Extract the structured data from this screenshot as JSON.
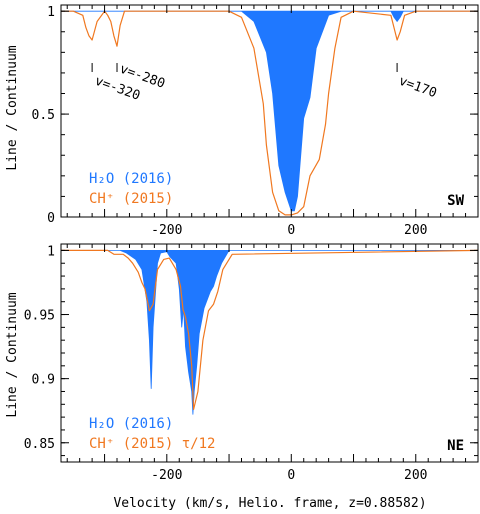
{
  "colors": {
    "h2o": "#1f78ff",
    "chp": "#f07820"
  },
  "chart_data": [
    {
      "type": "area",
      "panel_label": "SW",
      "ylabel": "Line / Continuum",
      "xlim": [
        -370,
        300
      ],
      "ylim": [
        0,
        1.03
      ],
      "yticks": [
        "0",
        "0.5",
        "1"
      ],
      "ytick_values": [
        0,
        0.5,
        1
      ],
      "xticks": [
        "-200",
        "0",
        "200"
      ],
      "xtick_values": [
        -200,
        0,
        200
      ],
      "legend": [
        {
          "label": "H₂O (2016)",
          "color": "h2o"
        },
        {
          "label": "CH⁺ (2015)",
          "color": "chp"
        }
      ],
      "annotations": [
        {
          "text": "v=-320",
          "v": -320
        },
        {
          "text": "v=-280",
          "v": -280
        },
        {
          "text": "v=170",
          "v": 170
        }
      ],
      "series": [
        {
          "name": "H₂O (2016)",
          "style": "filled",
          "x": [
            -370,
            -350,
            -340,
            -80,
            -60,
            -40,
            -30,
            -20,
            -10,
            0,
            5,
            10,
            20,
            30,
            40,
            60,
            80,
            160,
            165,
            170,
            175,
            180,
            300
          ],
          "y": [
            1.0,
            1.0,
            1.0,
            1.0,
            0.95,
            0.8,
            0.6,
            0.25,
            0.12,
            0.03,
            0.03,
            0.1,
            0.48,
            0.58,
            0.82,
            0.98,
            1.0,
            1.0,
            0.97,
            0.95,
            0.97,
            1.0,
            1.0
          ]
        },
        {
          "name": "CH⁺ (2015)",
          "style": "line",
          "x": [
            -370,
            -350,
            -335,
            -330,
            -325,
            -320,
            -312,
            -300,
            -295,
            -290,
            -285,
            -280,
            -275,
            -268,
            -250,
            -150,
            -100,
            -80,
            -60,
            -45,
            -40,
            -30,
            -20,
            -10,
            0,
            10,
            20,
            30,
            45,
            55,
            60,
            70,
            80,
            100,
            160,
            165,
            170,
            175,
            182,
            200,
            300
          ],
          "y": [
            1.0,
            1.0,
            0.98,
            0.92,
            0.88,
            0.86,
            0.95,
            1.0,
            0.98,
            0.95,
            0.88,
            0.83,
            0.93,
            1.0,
            1.0,
            1.0,
            1.0,
            0.97,
            0.82,
            0.55,
            0.35,
            0.12,
            0.03,
            0.01,
            0.01,
            0.02,
            0.05,
            0.2,
            0.28,
            0.45,
            0.6,
            0.82,
            0.97,
            1.0,
            0.98,
            0.92,
            0.86,
            0.9,
            0.98,
            1.0,
            1.0
          ]
        }
      ]
    },
    {
      "type": "area",
      "panel_label": "NE",
      "ylabel": "Line / Continuum",
      "xlabel": "Velocity (km/s, Helio. frame, z=0.88582)",
      "xlim": [
        -370,
        300
      ],
      "ylim": [
        0.835,
        1.005
      ],
      "yticks": [
        "0.85",
        "0.9",
        "0.95",
        "1"
      ],
      "ytick_values": [
        0.85,
        0.9,
        0.95,
        1
      ],
      "xticks": [
        "-200",
        "0",
        "200"
      ],
      "xtick_values": [
        -200,
        0,
        200
      ],
      "legend": [
        {
          "label": "H₂O (2016)",
          "color": "h2o"
        },
        {
          "label": "CH⁺ (2015) τ/12",
          "color": "chp"
        }
      ],
      "series": [
        {
          "name": "H₂O (2016)",
          "style": "filled",
          "x": [
            -370,
            -275,
            -265,
            -250,
            -240,
            -232,
            -228,
            -225,
            -222,
            -215,
            -210,
            -200,
            -195,
            -185,
            -180,
            -176,
            -173,
            -170,
            -165,
            -160,
            -158,
            -156,
            -152,
            -148,
            -140,
            -130,
            -125,
            -120,
            -112,
            -100,
            300
          ],
          "y": [
            1.0,
            1.0,
            0.998,
            0.993,
            0.985,
            0.96,
            0.93,
            0.892,
            0.94,
            0.99,
            0.998,
            0.999,
            0.995,
            0.99,
            0.97,
            0.94,
            0.955,
            0.925,
            0.905,
            0.89,
            0.872,
            0.89,
            0.91,
            0.935,
            0.955,
            0.968,
            0.972,
            0.98,
            0.99,
            1.0,
            1.0
          ]
        },
        {
          "name": "CH⁺ (2015) τ/12",
          "style": "line",
          "x": [
            -370,
            -295,
            -285,
            -270,
            -262,
            -255,
            -246,
            -240,
            -235,
            -228,
            -222,
            -215,
            -205,
            -196,
            -185,
            -178,
            -174,
            -170,
            -165,
            -160,
            -157,
            -150,
            -142,
            -133,
            -125,
            -118,
            -110,
            -95,
            300
          ],
          "y": [
            1.0,
            1.0,
            0.997,
            0.997,
            0.994,
            0.99,
            0.983,
            0.975,
            0.97,
            0.953,
            0.958,
            0.985,
            0.993,
            0.994,
            0.985,
            0.972,
            0.954,
            0.948,
            0.935,
            0.91,
            0.876,
            0.89,
            0.93,
            0.953,
            0.958,
            0.968,
            0.985,
            0.997,
            1.0
          ]
        }
      ]
    }
  ]
}
